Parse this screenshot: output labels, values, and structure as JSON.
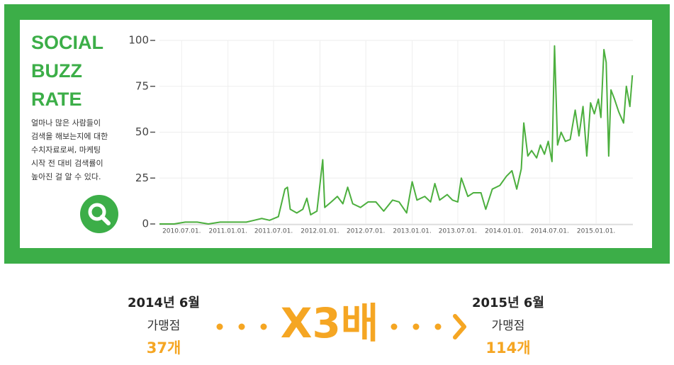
{
  "chart_data": {
    "type": "line",
    "x": [
      "2010-04-04",
      "2010-06-01",
      "2010-07-15",
      "2010-09-01",
      "2010-10-15",
      "2010-12-01",
      "2011-02-01",
      "2011-03-15",
      "2011-04-15",
      "2011-05-15",
      "2011-06-15",
      "2011-07-20",
      "2011-08-15",
      "2011-08-25",
      "2011-09-05",
      "2011-10-01",
      "2011-10-25",
      "2011-11-10",
      "2011-11-25",
      "2011-12-20",
      "2012-01-12",
      "2012-01-20",
      "2012-02-15",
      "2012-03-10",
      "2012-04-01",
      "2012-04-20",
      "2012-05-10",
      "2012-06-10",
      "2012-07-10",
      "2012-08-10",
      "2012-09-10",
      "2012-10-15",
      "2012-11-10",
      "2012-12-10",
      "2013-01-01",
      "2013-01-20",
      "2013-02-20",
      "2013-03-15",
      "2013-04-01",
      "2013-04-20",
      "2013-05-20",
      "2013-06-10",
      "2013-07-01",
      "2013-07-15",
      "2013-08-10",
      "2013-09-01",
      "2013-10-01",
      "2013-10-20",
      "2013-11-15",
      "2013-12-15",
      "2014-01-10",
      "2014-02-01",
      "2014-02-20",
      "2014-03-10",
      "2014-03-20",
      "2014-04-05",
      "2014-04-20",
      "2014-05-10",
      "2014-05-25",
      "2014-06-10",
      "2014-06-25",
      "2014-07-10",
      "2014-07-20",
      "2014-08-01",
      "2014-08-15",
      "2014-09-01",
      "2014-09-20",
      "2014-10-10",
      "2014-10-25",
      "2014-11-10",
      "2014-11-25",
      "2014-12-10",
      "2014-12-25",
      "2015-01-10",
      "2015-01-20",
      "2015-02-01",
      "2015-02-10",
      "2015-02-20",
      "2015-03-01",
      "2015-03-15",
      "2015-04-01",
      "2015-04-20",
      "2015-05-01",
      "2015-05-15",
      "2015-05-25"
    ],
    "series": [
      {
        "color": "#4caf3e",
        "values": [
          0,
          0,
          1,
          1,
          0,
          1,
          1,
          1,
          2,
          3,
          2,
          4,
          19,
          20,
          8,
          6,
          8,
          14,
          5,
          7,
          35,
          9,
          12,
          15,
          11,
          20,
          11,
          9,
          12,
          12,
          7,
          13,
          12,
          6,
          23,
          13,
          15,
          12,
          22,
          13,
          16,
          13,
          12,
          25,
          15,
          17,
          17,
          8,
          19,
          21,
          26,
          29,
          19,
          30,
          55,
          37,
          40,
          36,
          43,
          38,
          45,
          34,
          97,
          43,
          50,
          45,
          46,
          62,
          48,
          64,
          37,
          66,
          60,
          68,
          58,
          95,
          88,
          37,
          73,
          68,
          61,
          55,
          75,
          64,
          81
        ]
      }
    ],
    "xlim": [
      "2010-04-04",
      "2015-05-27"
    ],
    "xticks": [
      {
        "value": "2010-07-01",
        "label": "2010.07.01."
      },
      {
        "value": "2011-01-01",
        "label": "2011.01.01."
      },
      {
        "value": "2011-07-01",
        "label": "2011.07.01."
      },
      {
        "value": "2012-01-01",
        "label": "2012.01.01."
      },
      {
        "value": "2012-07-01",
        "label": "2012.07.01."
      },
      {
        "value": "2013-01-01",
        "label": "2013.01.01."
      },
      {
        "value": "2013-07-01",
        "label": "2013.07.01."
      },
      {
        "value": "2014-01-01",
        "label": "2014.01.01."
      },
      {
        "value": "2014-07-01",
        "label": "2014.07.01."
      },
      {
        "value": "2015-01-01",
        "label": "2015.01.01."
      }
    ],
    "ylim": [
      0,
      100
    ],
    "yticks": [
      0,
      25,
      50,
      75,
      100
    ],
    "grid": true
  },
  "panel": {
    "title": [
      "SOCIAL",
      "BUZZ",
      "RATE"
    ],
    "description": [
      "얼마나 많은 사람들이",
      "검색을 해보는지에 대한",
      "수치자료로써, 마케팅",
      "시작 전 대비 검색률이",
      "높아진 걸 알 수 있다."
    ]
  },
  "comparison": {
    "before": {
      "date": "2014년 6월",
      "label": "가맹점",
      "count": "37개"
    },
    "multiplier": "X3배",
    "after": {
      "date": "2015년 6월",
      "label": "가맹점",
      "count": "114개"
    }
  }
}
